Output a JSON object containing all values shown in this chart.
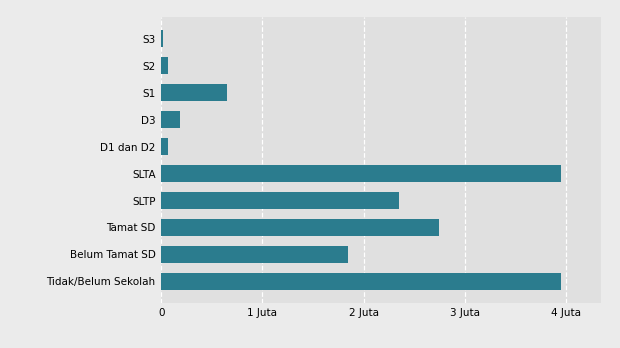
{
  "categories": [
    "Tidak/Belum Sekolah",
    "Belum Tamat SD",
    "Tamat SD",
    "SLTP",
    "SLTA",
    "D1 dan D2",
    "D3",
    "S1",
    "S2",
    "S3"
  ],
  "values": [
    3.95,
    1.85,
    2.75,
    2.35,
    3.95,
    0.07,
    0.19,
    0.65,
    0.07,
    0.015
  ],
  "bar_color": "#2b7c8e",
  "background_color": "#ebebeb",
  "plot_background": "#e0e0e0",
  "xlabel_labels": [
    "0",
    "1 Juta",
    "2 Juta",
    "3 Juta",
    "4 Juta"
  ],
  "xlim": [
    0,
    4.35
  ],
  "figsize": [
    6.2,
    3.48
  ],
  "dpi": 100
}
